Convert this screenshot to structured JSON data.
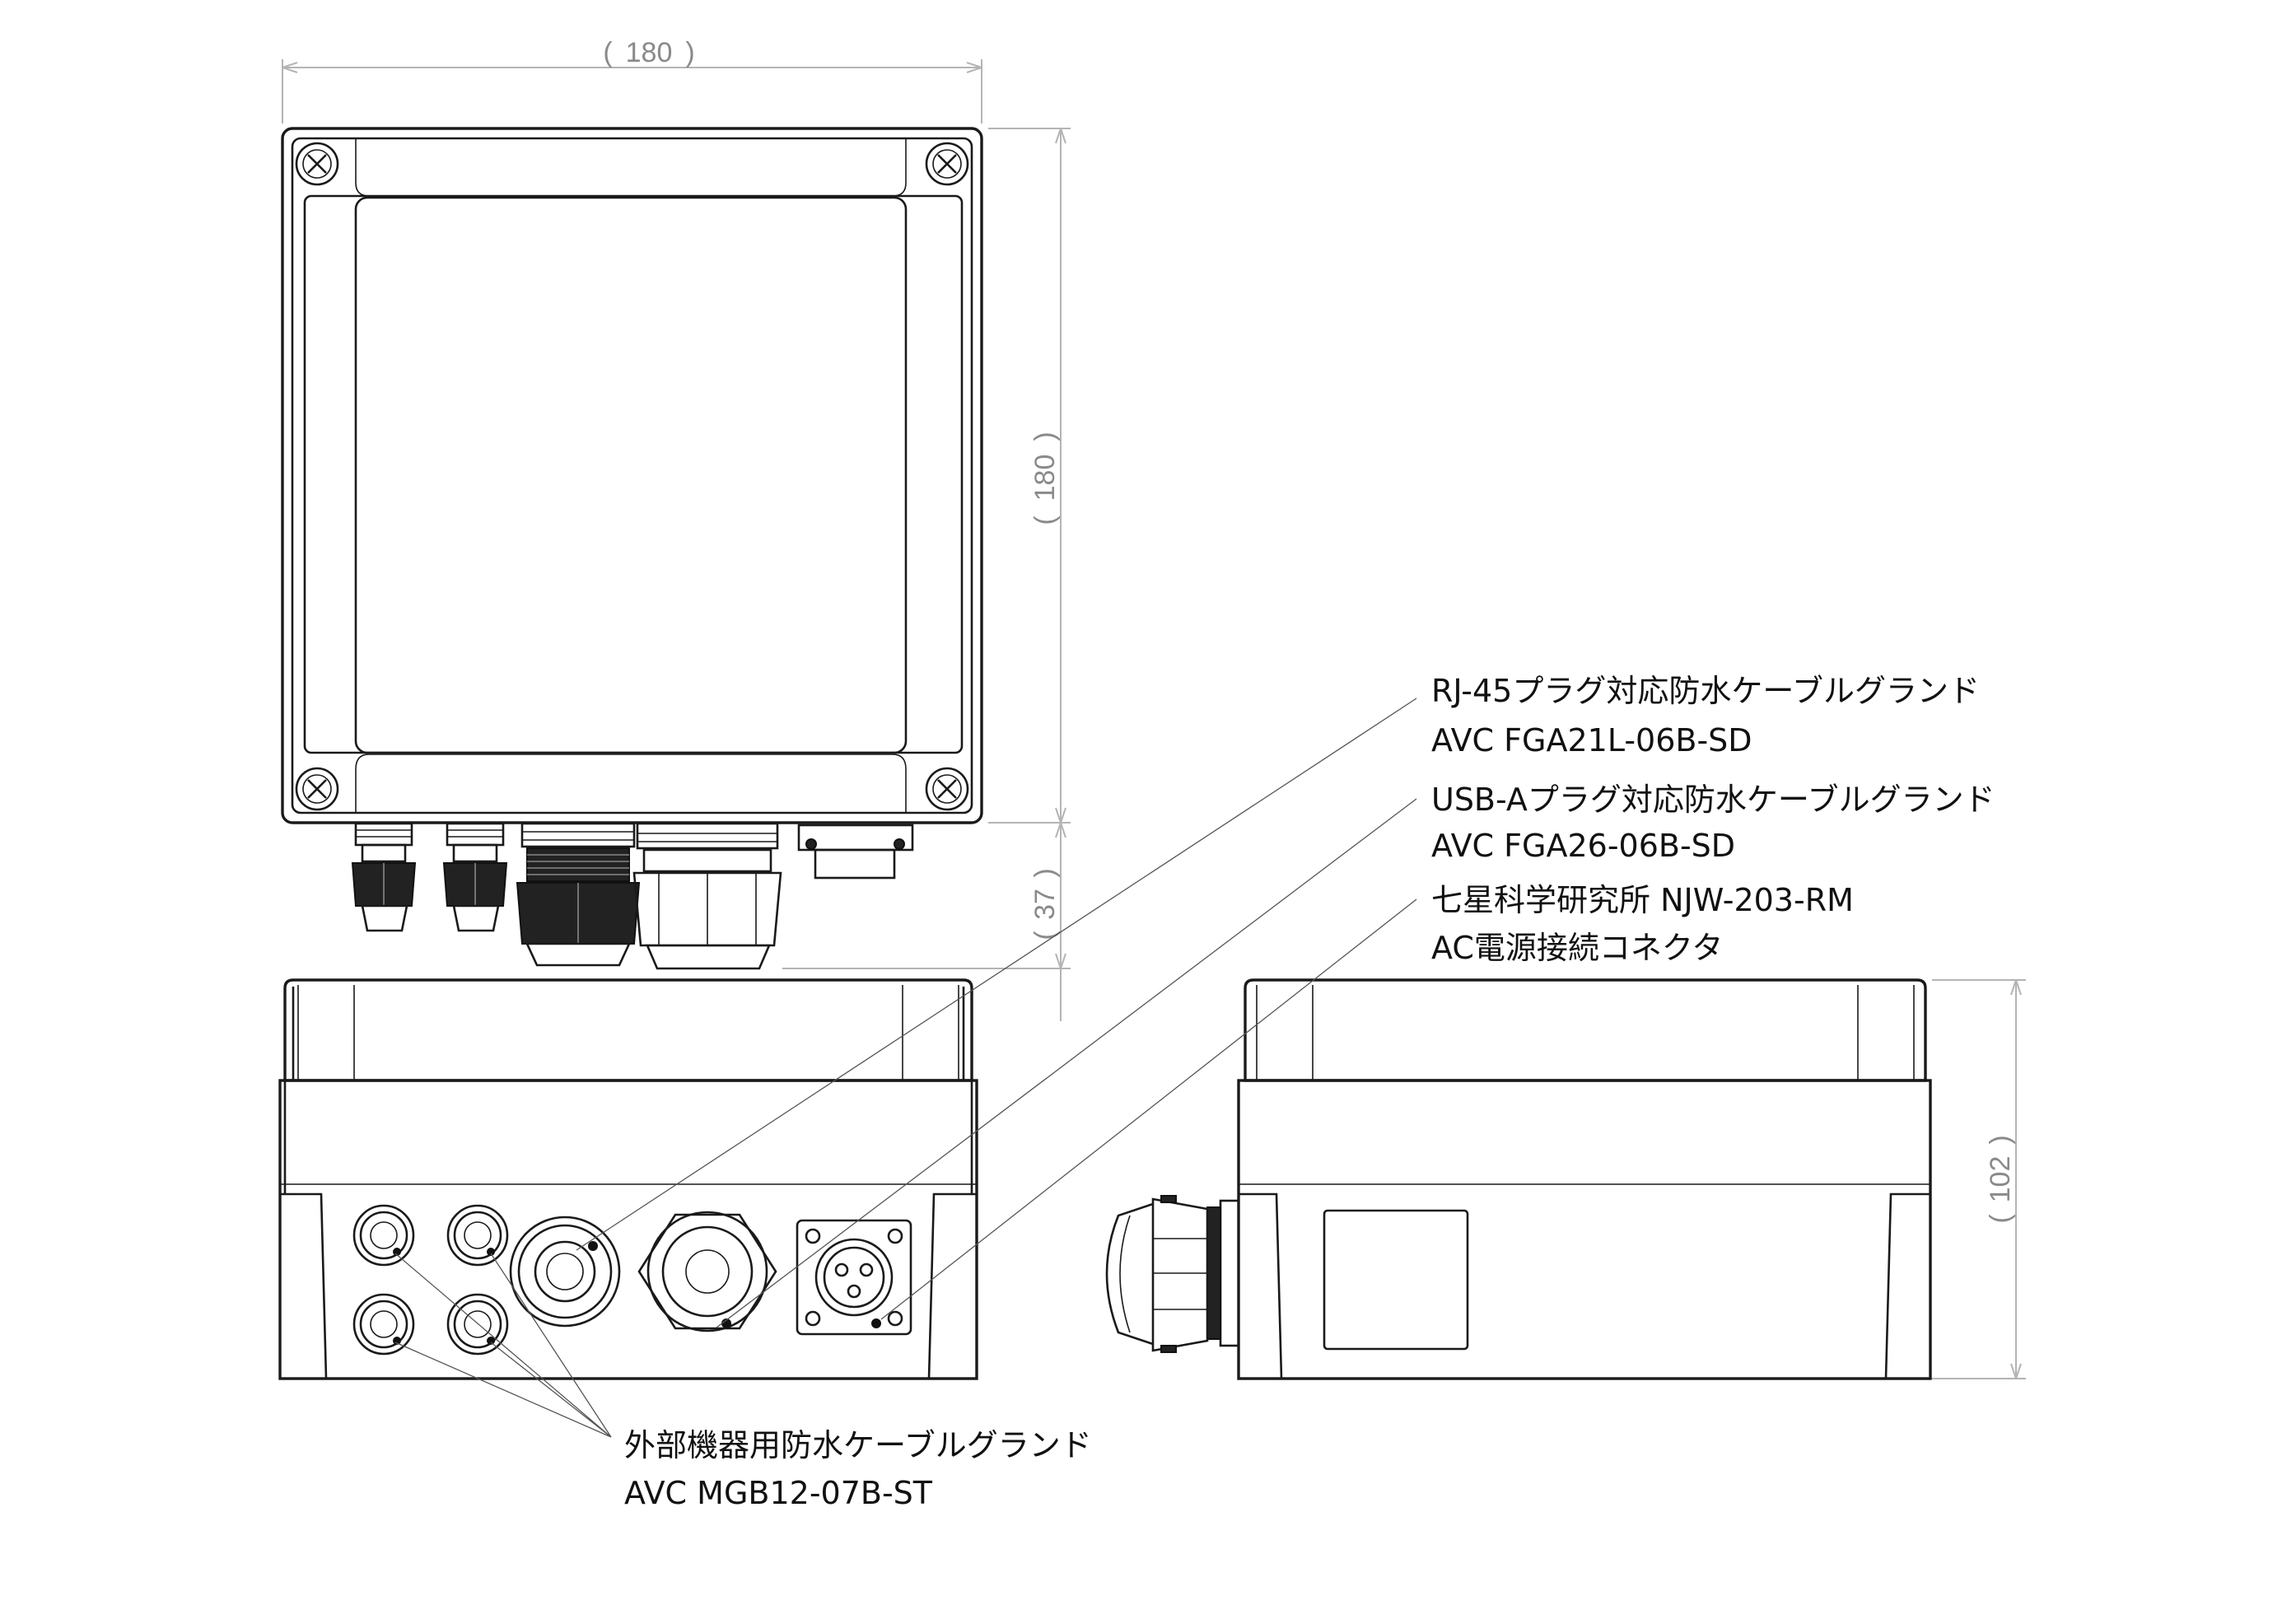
{
  "dimensions": {
    "top_width": "180",
    "top_height": "180",
    "gland_projection": "37",
    "side_height": "102"
  },
  "callouts": {
    "rj45": {
      "line1": "RJ-45プラグ対応防水ケーブルグランド",
      "line2": "AVC FGA21L-06B-SD"
    },
    "usb": {
      "line1": "USB-Aプラグ対応防水ケーブルグランド",
      "line2": "AVC FGA26-06B-SD"
    },
    "ac": {
      "line1": "七星科学研究所 NJW-203-RM",
      "line2": "AC電源接続コネクタ"
    },
    "external": {
      "line1": "外部機器用防水ケーブルグランド",
      "line2": "AVC MGB12-07B-ST"
    }
  }
}
